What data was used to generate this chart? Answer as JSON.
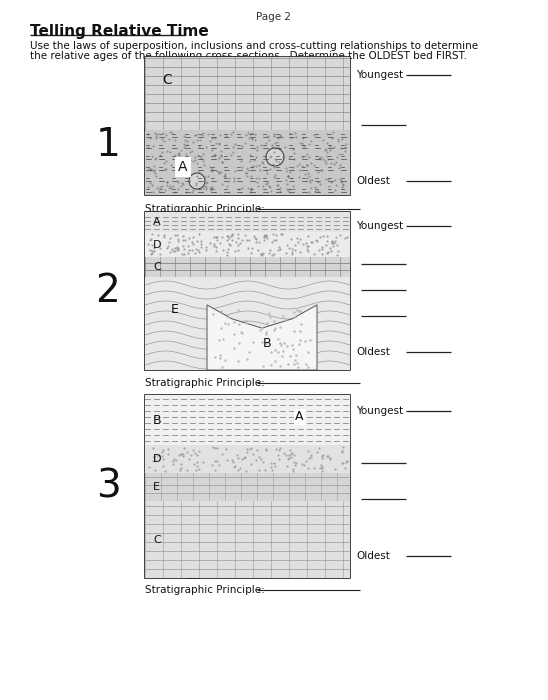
{
  "page_label": "Page 2",
  "title": "Telling Relative Time",
  "instructions_line1": "Use the laws of superposition, inclusions and cross-cutting relationships to determine",
  "instructions_line2": "the relative ages of the following cross-sections.  Determine the OLDEST bed FIRST.",
  "bg_color": "#ffffff",
  "text_color": "#1a1a1a",
  "diagram1": {
    "number": "1",
    "labels_right": [
      "Youngest",
      "",
      "Oldest"
    ],
    "stratigraphic_label": "Stratigraphic Principle:"
  },
  "diagram2": {
    "number": "2",
    "labels_right": [
      "Youngest",
      "",
      "",
      "",
      "Oldest"
    ],
    "stratigraphic_label": "Stratigraphic Principle:"
  },
  "diagram3": {
    "number": "3",
    "labels_right": [
      "Youngest",
      "",
      "",
      "Oldest"
    ],
    "stratigraphic_label": "Stratigraphic Principle:"
  }
}
